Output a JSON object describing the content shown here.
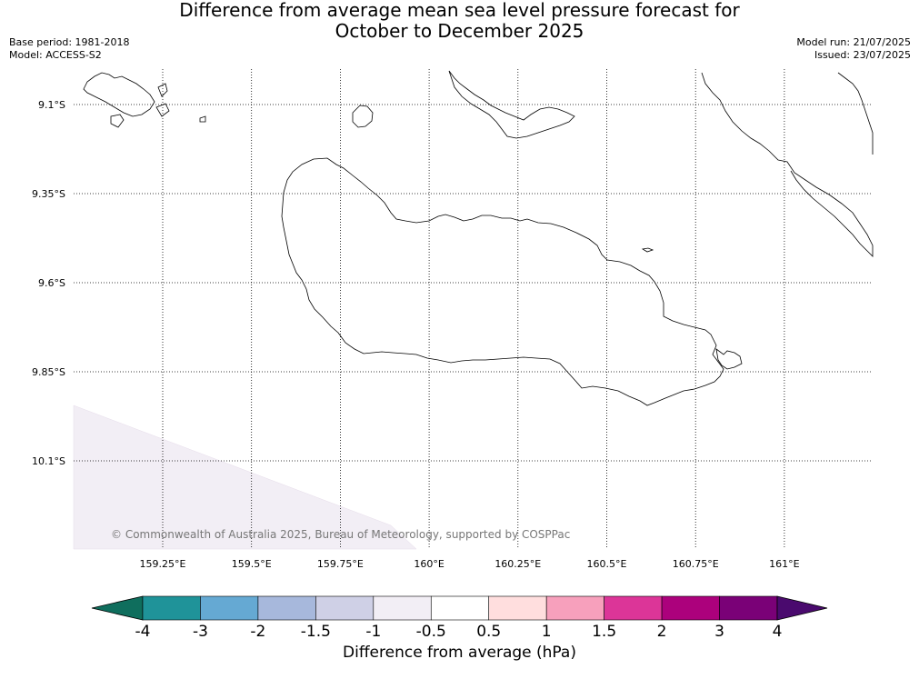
{
  "header": {
    "title_line1": "Difference from average mean sea level pressure forecast for",
    "title_line2": "October to December 2025",
    "base_period": "Base period: 1981-2018",
    "model": "Model: ACCESS-S2",
    "model_run": "Model run: 21/07/2025",
    "issued": "Issued: 23/07/2025"
  },
  "map": {
    "lon_ticks": [
      "159.25°E",
      "159.5°E",
      "159.75°E",
      "160°E",
      "160.25°E",
      "160.5°E",
      "160.75°E",
      "161°E"
    ],
    "lat_ticks": [
      "9.1°S",
      "9.35°S",
      "9.6°S",
      "9.85°S",
      "10.1°S"
    ],
    "copyright": "© Commonwealth of Australia 2025, Bureau of Meteorology, supported by COSPPac",
    "shaded_anomaly_color": "#f2eef5"
  },
  "colorbar": {
    "label": "Difference from average (hPa)",
    "ticks": [
      "-4",
      "-3",
      "-2",
      "-1.5",
      "-1",
      "-0.5",
      "0.5",
      "1",
      "1.5",
      "2",
      "3",
      "4"
    ],
    "low_extend_color": "#0f6e5d",
    "high_extend_color": "#4a0a6e",
    "colors": [
      "#1f9399",
      "#65a9d3",
      "#a7b8dc",
      "#cfd0e6",
      "#f2eef5",
      "#ffffff",
      "#ffdede",
      "#f7a0bc",
      "#dc3598",
      "#ac017c",
      "#7a0177"
    ]
  }
}
